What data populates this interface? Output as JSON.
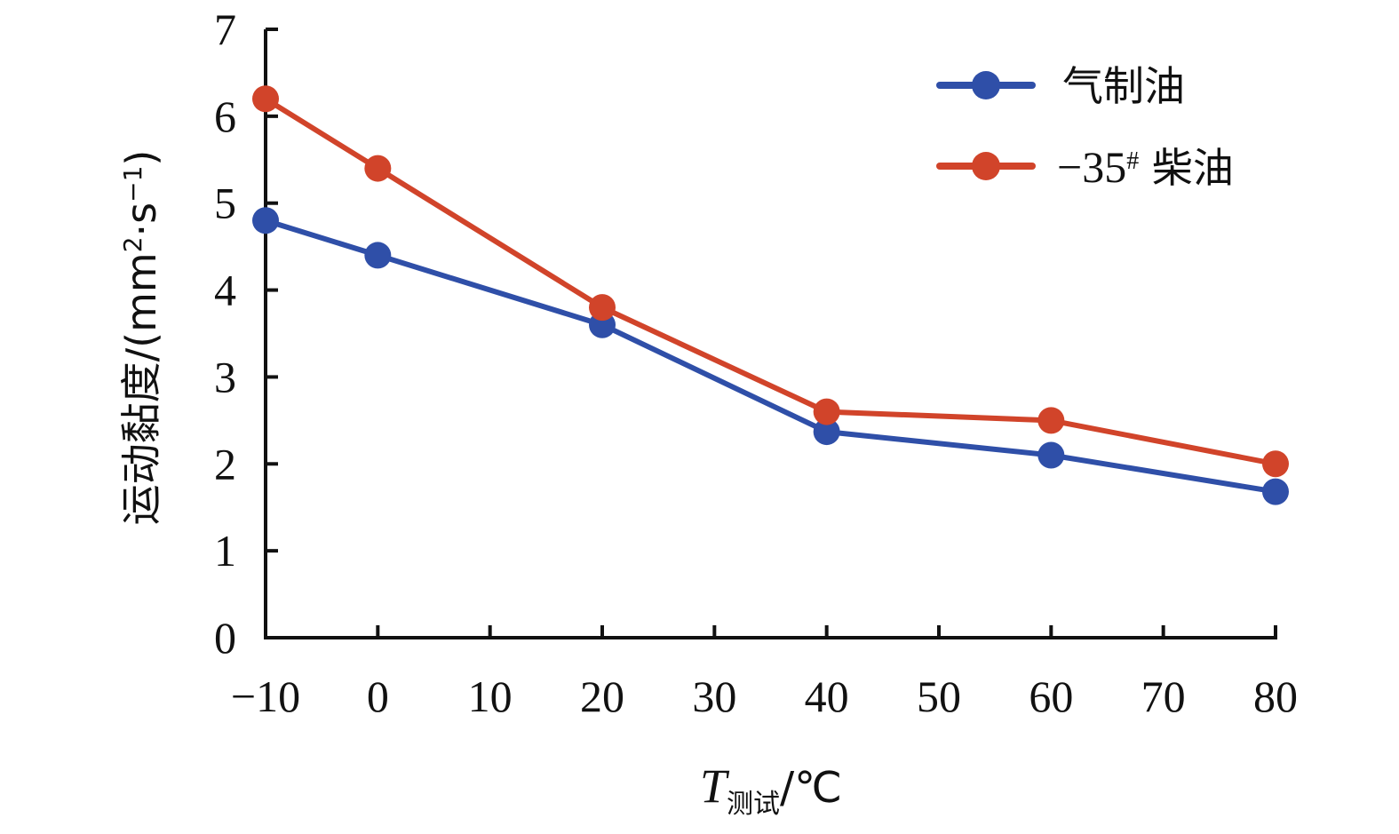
{
  "chart_data": {
    "type": "line",
    "xlabel": {
      "main": "T",
      "sub": "测试",
      "unit": "/℃"
    },
    "ylabel": {
      "prefix": "运动黏度/(mm",
      "sup1": "2",
      "mid": "·s",
      "sup2": "−1",
      "suffix": ")"
    },
    "xlim": [
      -10,
      80
    ],
    "ylim": [
      0,
      7
    ],
    "x_ticks": [
      "−10",
      "0",
      "10",
      "20",
      "30",
      "40",
      "50",
      "60",
      "70",
      "80"
    ],
    "x_tick_values": [
      -10,
      0,
      10,
      20,
      30,
      40,
      50,
      60,
      70,
      80
    ],
    "y_ticks": [
      "0",
      "1",
      "2",
      "3",
      "4",
      "5",
      "6",
      "7"
    ],
    "y_tick_values": [
      0,
      1,
      2,
      3,
      4,
      5,
      6,
      7
    ],
    "x": [
      -10,
      0,
      20,
      40,
      60,
      80
    ],
    "series": [
      {
        "name": "气制油",
        "values": [
          4.8,
          4.4,
          3.6,
          2.37,
          2.1,
          1.68
        ],
        "color": "#2f4fa8"
      },
      {
        "name": "−35# 柴油",
        "name_main": "−35",
        "name_sup": "#",
        "name_tail": " 柴油",
        "values": [
          6.2,
          5.4,
          3.8,
          2.6,
          2.5,
          2.0
        ],
        "color": "#d1442a"
      }
    ],
    "legend_position": "top-right",
    "grid": false
  }
}
